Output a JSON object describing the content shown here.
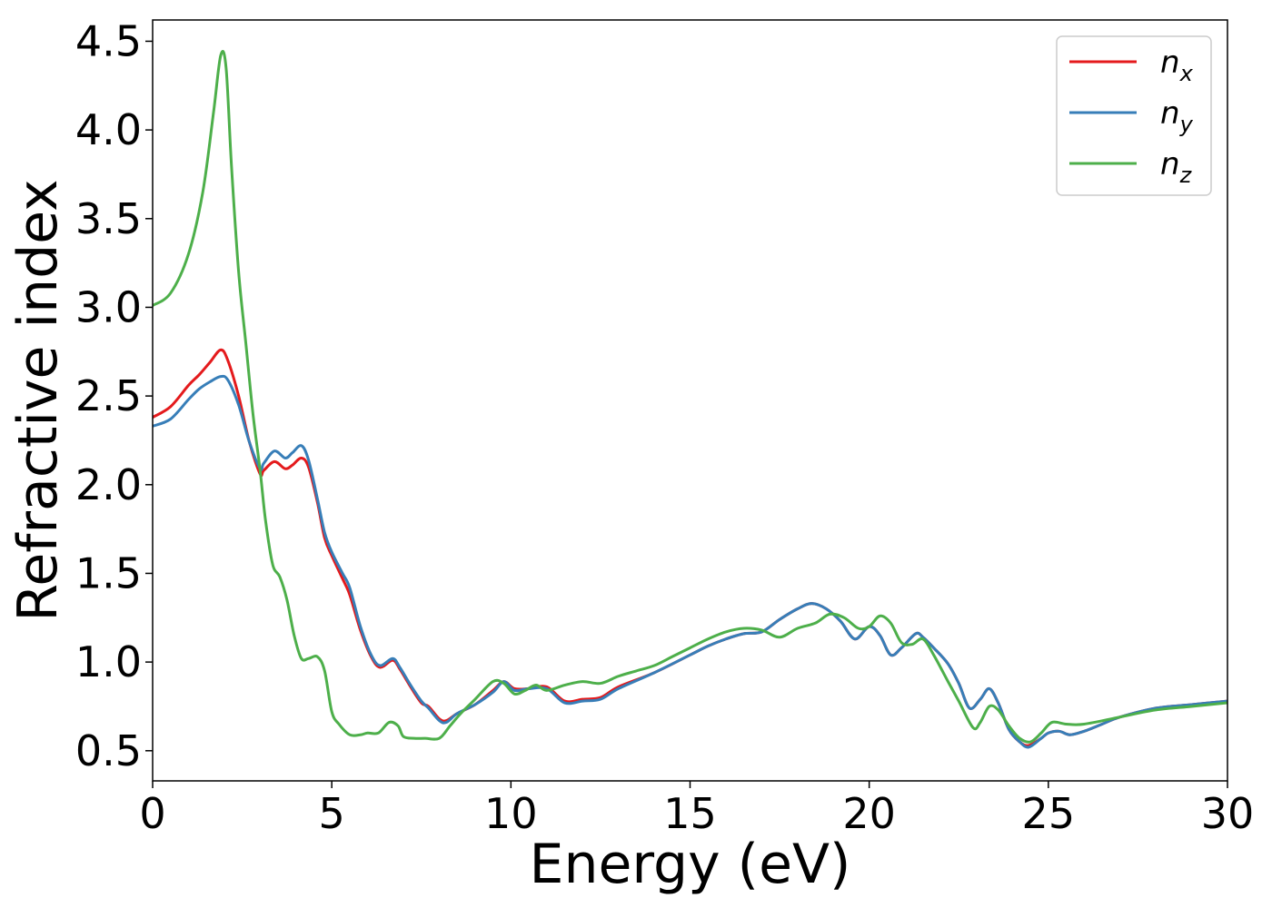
{
  "chart_data": {
    "type": "line",
    "xlabel": "Energy (eV)",
    "ylabel": "Refractive index",
    "xlim": [
      0,
      30
    ],
    "ylim": [
      0.33,
      4.62
    ],
    "xticks": [
      0,
      5,
      10,
      15,
      20,
      25,
      30
    ],
    "xtick_labels": [
      "0",
      "5",
      "10",
      "15",
      "20",
      "25",
      "30"
    ],
    "yticks": [
      0.5,
      1.0,
      1.5,
      2.0,
      2.5,
      3.0,
      3.5,
      4.0,
      4.5
    ],
    "ytick_labels": [
      "0.5",
      "1.0",
      "1.5",
      "2.0",
      "2.5",
      "3.0",
      "3.5",
      "4.0",
      "4.5"
    ],
    "grid": false,
    "legend_position": "top-right",
    "series": [
      {
        "name": "n",
        "subscript": "x",
        "color": "#e41a1c",
        "x": [
          0,
          0.5,
          1.0,
          1.3,
          1.6,
          1.9,
          2.1,
          2.4,
          2.7,
          3.0,
          3.1,
          3.4,
          3.7,
          3.9,
          4.15,
          4.35,
          4.6,
          4.8,
          5.0,
          5.3,
          5.5,
          5.8,
          6.1,
          6.35,
          6.7,
          6.9,
          7.2,
          7.5,
          7.7,
          8.0,
          8.2,
          8.5,
          9.0,
          9.5,
          9.8,
          10.1,
          10.5,
          11.0,
          11.5,
          12.0,
          12.5,
          13.0,
          14.0,
          15.0,
          15.5,
          16.0,
          16.5,
          17.0,
          17.5,
          18.0,
          18.4,
          18.8,
          19.2,
          19.6,
          20.0,
          20.3,
          20.6,
          20.9,
          21.3,
          21.5,
          21.8,
          22.2,
          22.5,
          22.8,
          23.1,
          23.35,
          23.6,
          23.9,
          24.2,
          24.45,
          24.8,
          25.0,
          25.3,
          25.6,
          26.0,
          26.5,
          27.0,
          28.0,
          29.0,
          30.0
        ],
        "y": [
          2.38,
          2.44,
          2.56,
          2.62,
          2.69,
          2.76,
          2.7,
          2.5,
          2.24,
          2.06,
          2.08,
          2.13,
          2.09,
          2.11,
          2.15,
          2.1,
          1.9,
          1.7,
          1.6,
          1.47,
          1.38,
          1.18,
          1.03,
          0.97,
          1.01,
          0.96,
          0.86,
          0.77,
          0.75,
          0.68,
          0.67,
          0.71,
          0.76,
          0.84,
          0.89,
          0.85,
          0.85,
          0.86,
          0.78,
          0.79,
          0.8,
          0.86,
          0.94,
          1.04,
          1.09,
          1.13,
          1.16,
          1.17,
          1.24,
          1.3,
          1.33,
          1.3,
          1.23,
          1.13,
          1.2,
          1.15,
          1.04,
          1.08,
          1.16,
          1.14,
          1.08,
          0.99,
          0.88,
          0.74,
          0.79,
          0.85,
          0.77,
          0.62,
          0.55,
          0.53,
          0.57,
          0.6,
          0.61,
          0.59,
          0.61,
          0.65,
          0.69,
          0.74,
          0.76,
          0.78
        ]
      },
      {
        "name": "n",
        "subscript": "y",
        "color": "#377eb8",
        "x": [
          0,
          0.5,
          1.0,
          1.3,
          1.6,
          1.9,
          2.1,
          2.4,
          2.7,
          3.0,
          3.1,
          3.4,
          3.7,
          3.9,
          4.15,
          4.35,
          4.6,
          4.8,
          5.0,
          5.3,
          5.5,
          5.8,
          6.1,
          6.35,
          6.7,
          6.9,
          7.2,
          7.5,
          7.7,
          8.0,
          8.2,
          8.5,
          9.0,
          9.5,
          9.8,
          10.1,
          10.5,
          11.0,
          11.5,
          12.0,
          12.5,
          13.0,
          14.0,
          15.0,
          15.5,
          16.0,
          16.5,
          17.0,
          17.5,
          18.0,
          18.4,
          18.8,
          19.2,
          19.6,
          20.0,
          20.3,
          20.6,
          20.9,
          21.3,
          21.5,
          21.8,
          22.2,
          22.5,
          22.8,
          23.1,
          23.35,
          23.6,
          23.9,
          24.2,
          24.45,
          24.8,
          25.0,
          25.3,
          25.6,
          26.0,
          26.5,
          27.0,
          28.0,
          29.0,
          30.0
        ],
        "y": [
          2.33,
          2.37,
          2.48,
          2.54,
          2.58,
          2.61,
          2.59,
          2.45,
          2.24,
          2.09,
          2.12,
          2.19,
          2.15,
          2.18,
          2.22,
          2.14,
          1.92,
          1.73,
          1.62,
          1.5,
          1.42,
          1.2,
          1.04,
          0.98,
          1.02,
          0.97,
          0.87,
          0.78,
          0.74,
          0.67,
          0.66,
          0.71,
          0.76,
          0.83,
          0.89,
          0.84,
          0.85,
          0.85,
          0.77,
          0.78,
          0.79,
          0.85,
          0.94,
          1.04,
          1.09,
          1.13,
          1.16,
          1.17,
          1.24,
          1.3,
          1.33,
          1.3,
          1.23,
          1.13,
          1.2,
          1.15,
          1.04,
          1.08,
          1.16,
          1.14,
          1.08,
          0.99,
          0.88,
          0.74,
          0.79,
          0.85,
          0.77,
          0.62,
          0.55,
          0.52,
          0.57,
          0.6,
          0.61,
          0.59,
          0.61,
          0.65,
          0.69,
          0.74,
          0.76,
          0.78
        ]
      },
      {
        "name": "n",
        "subscript": "z",
        "color": "#4daf4a",
        "x": [
          0,
          0.5,
          1.0,
          1.4,
          1.7,
          1.9,
          2.05,
          2.2,
          2.4,
          2.6,
          2.8,
          3.0,
          3.15,
          3.35,
          3.55,
          3.75,
          3.95,
          4.15,
          4.35,
          4.6,
          4.8,
          5.0,
          5.2,
          5.5,
          5.8,
          6.0,
          6.3,
          6.6,
          6.85,
          7.0,
          7.3,
          7.6,
          8.0,
          8.3,
          8.6,
          9.0,
          9.5,
          9.8,
          10.1,
          10.4,
          10.7,
          11.0,
          11.5,
          12.0,
          12.5,
          13.0,
          13.5,
          14.0,
          14.5,
          15.0,
          15.5,
          16.0,
          16.5,
          17.0,
          17.5,
          18.0,
          18.5,
          18.9,
          19.3,
          19.7,
          20.0,
          20.3,
          20.6,
          20.9,
          21.2,
          21.5,
          21.8,
          22.2,
          22.5,
          22.9,
          23.1,
          23.35,
          23.6,
          23.9,
          24.2,
          24.5,
          24.8,
          25.1,
          25.5,
          26.0,
          27.0,
          28.0,
          29.0,
          30.0
        ],
        "y": [
          3.01,
          3.08,
          3.3,
          3.65,
          4.1,
          4.42,
          4.35,
          3.8,
          3.2,
          2.8,
          2.4,
          2.08,
          1.8,
          1.55,
          1.48,
          1.35,
          1.15,
          1.02,
          1.02,
          1.03,
          0.95,
          0.72,
          0.65,
          0.59,
          0.59,
          0.6,
          0.6,
          0.66,
          0.64,
          0.58,
          0.57,
          0.57,
          0.57,
          0.64,
          0.71,
          0.79,
          0.89,
          0.88,
          0.82,
          0.84,
          0.87,
          0.84,
          0.87,
          0.89,
          0.88,
          0.92,
          0.95,
          0.98,
          1.03,
          1.08,
          1.13,
          1.17,
          1.19,
          1.18,
          1.14,
          1.19,
          1.22,
          1.27,
          1.25,
          1.19,
          1.2,
          1.26,
          1.22,
          1.11,
          1.1,
          1.13,
          1.04,
          0.89,
          0.78,
          0.63,
          0.66,
          0.75,
          0.73,
          0.64,
          0.57,
          0.55,
          0.6,
          0.66,
          0.65,
          0.65,
          0.69,
          0.73,
          0.75,
          0.77
        ]
      }
    ]
  }
}
